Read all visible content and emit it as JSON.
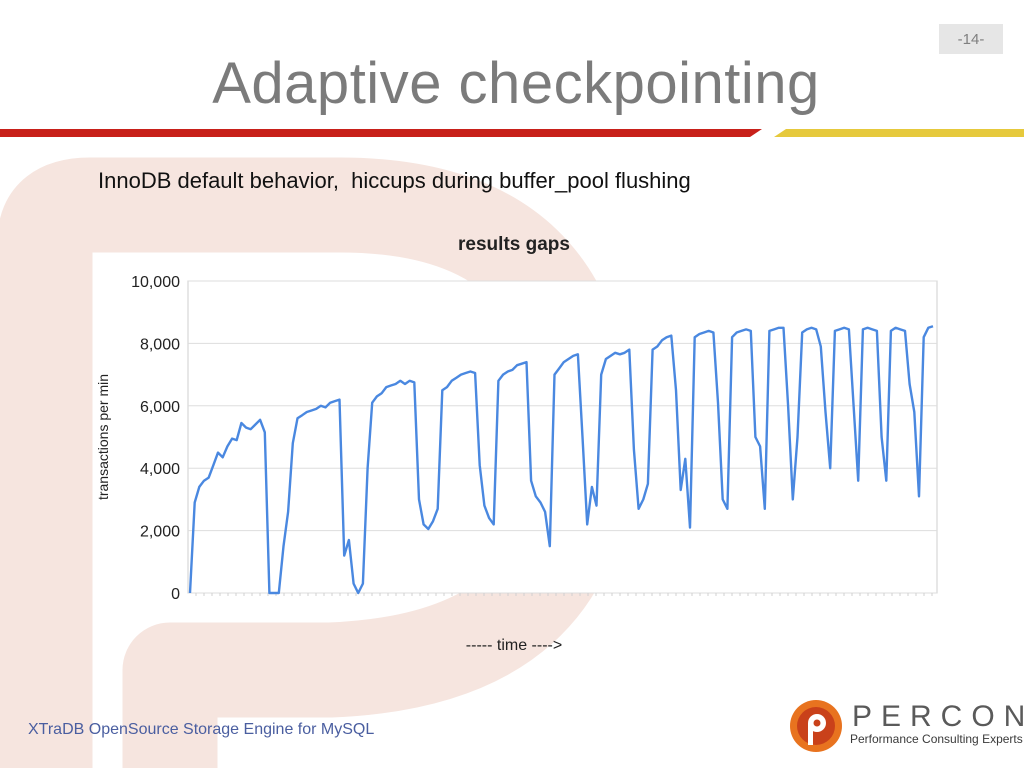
{
  "slide": {
    "page_number": "-14-",
    "title": "Adaptive checkpointing",
    "subtitle": "InnoDB default behavior,  hiccups during buffer_pool flushing",
    "footer": "XTraDB OpenSource Storage Engine for MySQL",
    "colors": {
      "title_rule_red": "#c8201a",
      "title_rule_yellow": "#e6c93c",
      "line": "#4a88e0"
    }
  },
  "logo": {
    "brand": "PERCONA",
    "tagline": "Performance Consulting Experts",
    "icon": "percona-p-logo-icon"
  },
  "chart_data": {
    "type": "line",
    "title": "results gaps",
    "xlabel": "----- time ---->",
    "ylabel": "transactions per min",
    "ylim": [
      0,
      10000
    ],
    "yticks": [
      0,
      2000,
      4000,
      6000,
      8000,
      10000
    ],
    "ytick_labels": [
      "0",
      "2,000",
      "4,000",
      "6,000",
      "8,000",
      "10,000"
    ],
    "grid": true,
    "legend": "none",
    "series": [
      {
        "color": "#4a88e0",
        "values": [
          0,
          2900,
          3400,
          3600,
          3700,
          4100,
          4500,
          4350,
          4700,
          4950,
          4900,
          5450,
          5300,
          5250,
          5400,
          5550,
          5150,
          0,
          0,
          0,
          1500,
          2600,
          4800,
          5600,
          5700,
          5800,
          5850,
          5900,
          6000,
          5950,
          6100,
          6150,
          6200,
          1200,
          1700,
          300,
          0,
          300,
          4000,
          6100,
          6300,
          6400,
          6600,
          6650,
          6700,
          6800,
          6700,
          6800,
          6750,
          3000,
          2200,
          2050,
          2300,
          2700,
          6500,
          6600,
          6800,
          6900,
          7000,
          7050,
          7100,
          7050,
          4100,
          2800,
          2400,
          2200,
          6800,
          7000,
          7100,
          7150,
          7300,
          7350,
          7400,
          3600,
          3100,
          2900,
          2600,
          1500,
          7000,
          7200,
          7400,
          7500,
          7600,
          7650,
          5000,
          2200,
          3400,
          2800,
          7000,
          7500,
          7600,
          7700,
          7650,
          7700,
          7800,
          4600,
          2700,
          3000,
          3500,
          7800,
          7900,
          8100,
          8200,
          8250,
          6500,
          3300,
          4300,
          2100,
          8200,
          8300,
          8350,
          8400,
          8350,
          6100,
          3000,
          2700,
          8200,
          8350,
          8400,
          8450,
          8400,
          5000,
          4700,
          2700,
          8400,
          8450,
          8500,
          8500,
          6000,
          3000,
          5000,
          8350,
          8450,
          8500,
          8450,
          7900,
          5800,
          4000,
          8400,
          8450,
          8500,
          8450,
          6000,
          3600,
          8450,
          8500,
          8450,
          8400,
          5000,
          3600,
          8400,
          8500,
          8450,
          8400,
          6700,
          5800,
          3100,
          8200,
          8500,
          8550
        ]
      }
    ]
  }
}
